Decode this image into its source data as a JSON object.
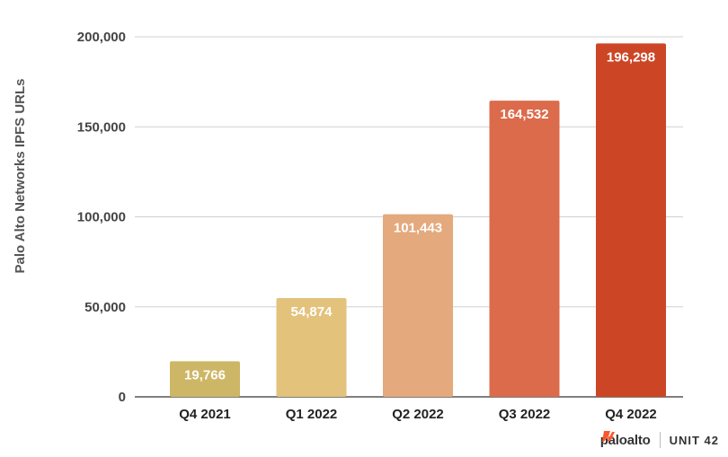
{
  "chart_data": {
    "type": "bar",
    "categories": [
      "Q4 2021",
      "Q1 2022",
      "Q2 2022",
      "Q3 2022",
      "Q4 2022"
    ],
    "values": [
      19766,
      54874,
      101443,
      164532,
      196298
    ],
    "value_labels": [
      "19,766",
      "54,874",
      "101,443",
      "164,532",
      "196,298"
    ],
    "bar_colors": [
      "#cdb766",
      "#e3c27c",
      "#e4a97d",
      "#dc6b4b",
      "#cc4626"
    ],
    "title": "",
    "xlabel": "",
    "ylabel": "Palo Alto Networks IPFS URLs",
    "ylim": [
      0,
      200000
    ],
    "yticks": [
      0,
      50000,
      100000,
      150000,
      200000
    ],
    "ytick_labels": [
      "0",
      "50,000",
      "100,000",
      "150,000",
      "200,000"
    ],
    "grid": true,
    "legend": "none"
  },
  "branding": {
    "paloalto_text": "paloalto",
    "unit42_text": "UNIT 42",
    "accent_color": "#fa582d",
    "paloalto_icon": "paloalto-chevrons-icon",
    "unit42_icon": "unit42-flag-icon"
  }
}
